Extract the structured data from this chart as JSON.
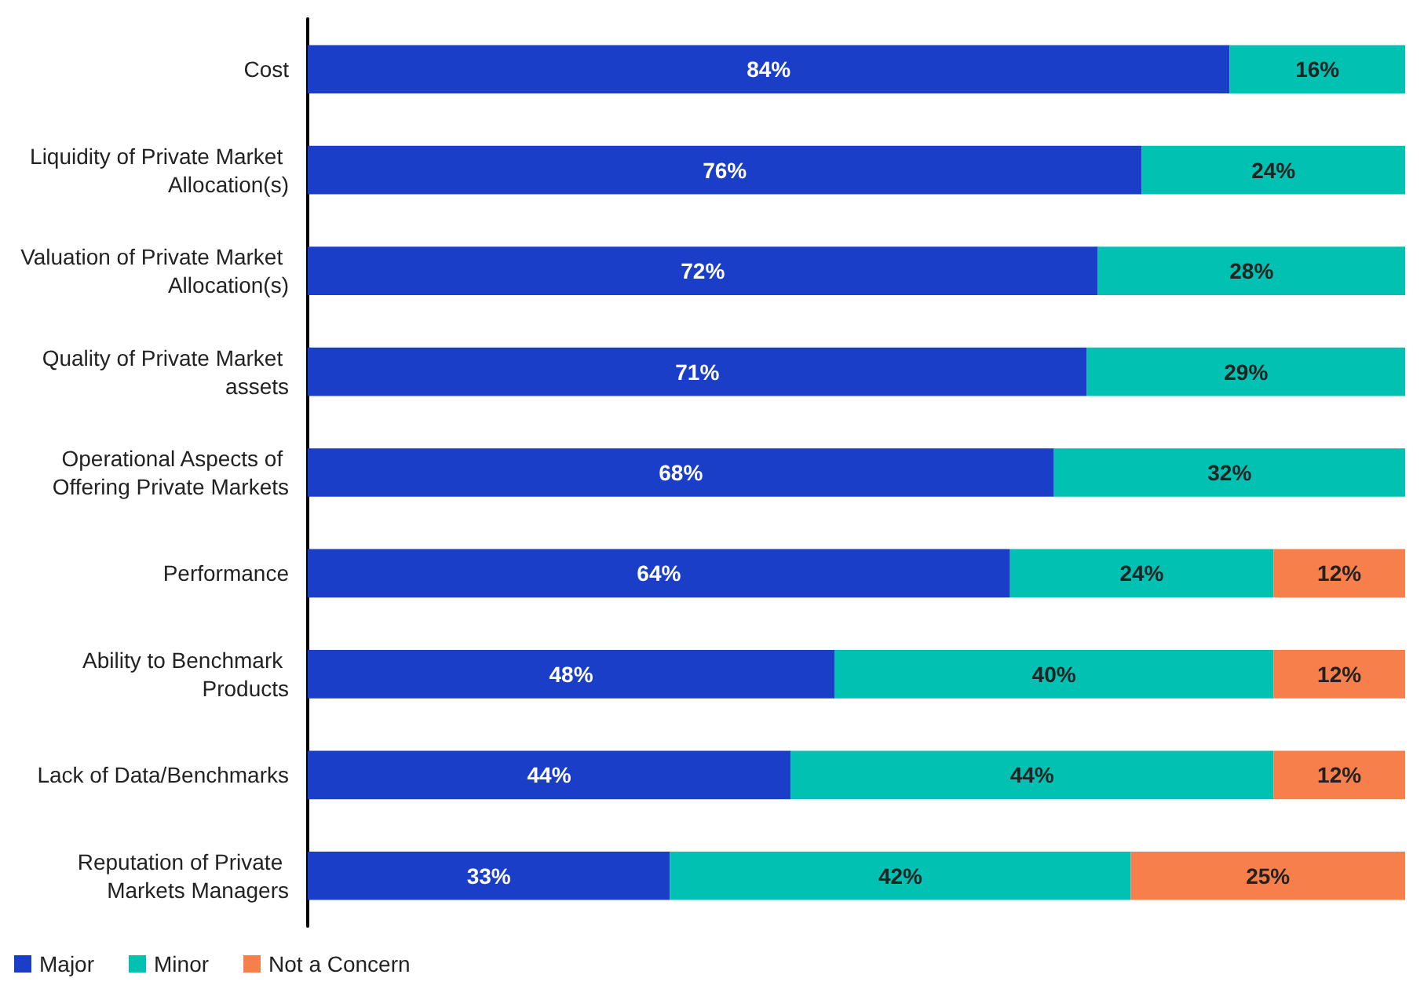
{
  "chart_data": {
    "type": "bar",
    "orientation": "horizontal",
    "stacked": true,
    "legend": "bottom left",
    "tick_labels": "y",
    "categories": [
      "Cost",
      "Liquidity of Private Market Allocation(s)",
      "Valuation of Private Market Allocation(s)",
      "Quality of Private Market assets",
      "Operational Aspects of Offering Private Markets",
      "Performance",
      "Ability to Benchmark Products",
      "Lack of Data/Benchmarks",
      "Reputation of Private Markets Managers"
    ],
    "series": [
      {
        "name": "Major",
        "color": "#1a3ec8",
        "values": [
          84,
          76,
          72,
          71,
          68,
          64,
          48,
          44,
          33
        ],
        "value_labels": [
          "84%",
          "76%",
          "72%",
          "71%",
          "68%",
          "64%",
          "48%",
          "44%",
          "33%"
        ]
      },
      {
        "name": "Minor",
        "color": "#00c1b2",
        "values": [
          16,
          24,
          28,
          29,
          32,
          24,
          40,
          44,
          42
        ],
        "value_labels": [
          "16%",
          "24%",
          "28%",
          "29%",
          "32%",
          "24%",
          "40%",
          "44%",
          "42%"
        ]
      },
      {
        "name": "Not a Concern",
        "color": "#f67f4c",
        "values": [
          null,
          null,
          null,
          null,
          null,
          12,
          12,
          12,
          25
        ],
        "value_labels": [
          null,
          null,
          null,
          null,
          null,
          "12%",
          "12%",
          "12%",
          "25%"
        ]
      }
    ]
  }
}
